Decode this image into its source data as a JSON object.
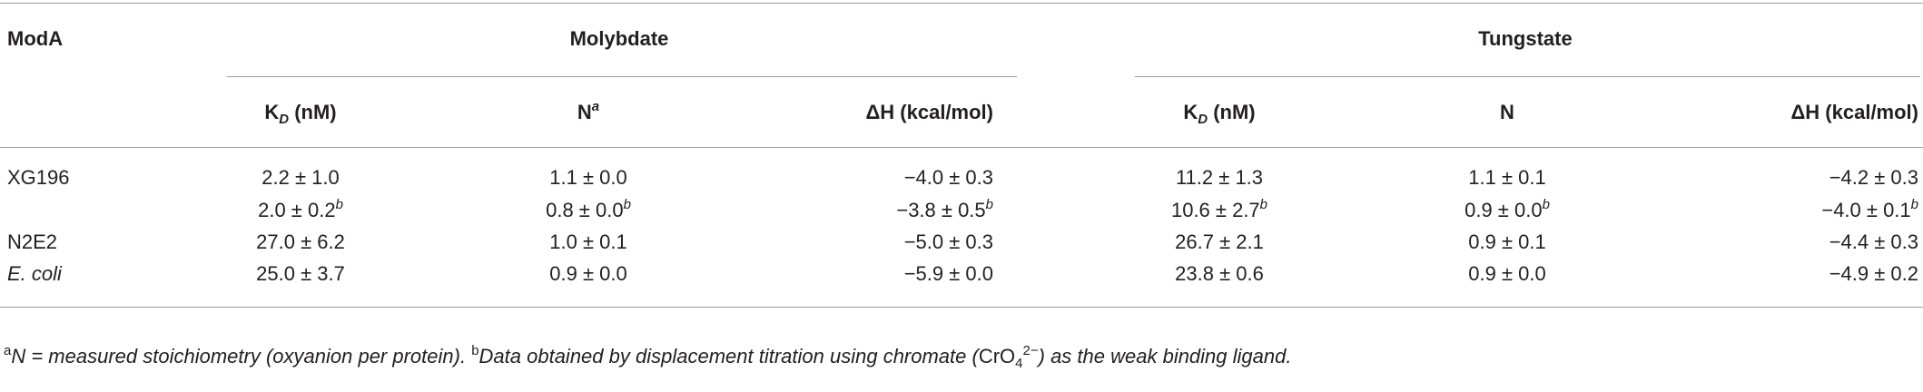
{
  "table": {
    "stub_header": "ModA",
    "groups": [
      "Molybdate",
      "Tungstate"
    ],
    "columns": [
      [
        {
          "text": "K"
        },
        {
          "text": "D",
          "style": "sub italic"
        },
        {
          "text": " (nM)"
        }
      ],
      [
        {
          "text": "N"
        },
        {
          "text": "a",
          "style": "sup italic"
        }
      ],
      [
        {
          "text": "ΔH (kcal/mol)"
        }
      ],
      [
        {
          "text": "K"
        },
        {
          "text": "D",
          "style": "sub italic"
        },
        {
          "text": " (nM)"
        }
      ],
      [
        {
          "text": "N"
        }
      ],
      [
        {
          "text": "ΔH (kcal/mol)"
        }
      ]
    ],
    "rows": [
      [
        [
          {
            "text": "XG196"
          }
        ],
        [
          {
            "text": "2.2 ± 1.0"
          }
        ],
        [
          {
            "text": "1.1 ± 0.0"
          }
        ],
        [
          {
            "text": "−4.0 ± 0.3"
          }
        ],
        [
          {
            "text": "11.2 ± 1.3"
          }
        ],
        [
          {
            "text": "1.1 ± 0.1"
          }
        ],
        [
          {
            "text": "−4.2 ± 0.3"
          }
        ]
      ],
      [
        [],
        [
          {
            "text": "2.0 ± 0.2"
          },
          {
            "text": "b",
            "style": "sup italic"
          }
        ],
        [
          {
            "text": "0.8 ± 0.0"
          },
          {
            "text": "b",
            "style": "sup italic"
          }
        ],
        [
          {
            "text": "−3.8 ± 0.5"
          },
          {
            "text": "b",
            "style": "sup italic"
          }
        ],
        [
          {
            "text": "10.6 ± 2.7"
          },
          {
            "text": "b",
            "style": "sup italic"
          }
        ],
        [
          {
            "text": "0.9 ± 0.0"
          },
          {
            "text": "b",
            "style": "sup italic"
          }
        ],
        [
          {
            "text": "−4.0 ± 0.1"
          },
          {
            "text": "b",
            "style": "sup italic"
          }
        ]
      ],
      [
        [
          {
            "text": "N2E2"
          }
        ],
        [
          {
            "text": "27.0 ± 6.2"
          }
        ],
        [
          {
            "text": "1.0 ± 0.1"
          }
        ],
        [
          {
            "text": "−5.0 ± 0.3"
          }
        ],
        [
          {
            "text": "26.7 ± 2.1"
          }
        ],
        [
          {
            "text": "0.9 ± 0.1"
          }
        ],
        [
          {
            "text": "−4.4 ± 0.3"
          }
        ]
      ],
      [
        [
          {
            "text": "E. coli",
            "style": "italic"
          }
        ],
        [
          {
            "text": "25.0 ± 3.7"
          }
        ],
        [
          {
            "text": "0.9 ± 0.0"
          }
        ],
        [
          {
            "text": "−5.9 ± 0.0"
          }
        ],
        [
          {
            "text": "23.8 ± 0.6"
          }
        ],
        [
          {
            "text": "0.9 ± 0.0"
          }
        ],
        [
          {
            "text": "−4.9 ± 0.2"
          }
        ]
      ]
    ],
    "footnote": [
      {
        "text": "a",
        "style": "sup"
      },
      {
        "text": "N = measured stoichiometry (oxyanion per protein). ",
        "style": "italic"
      },
      {
        "text": "b",
        "style": "sup"
      },
      {
        "text": "Data obtained by displacement titration using chromate (",
        "style": "italic"
      },
      {
        "text": "CrO"
      },
      {
        "text": "4",
        "style": "sub"
      },
      {
        "text": "2−",
        "style": "sup"
      },
      {
        "text": ") as the weak binding ligand.",
        "style": "italic"
      }
    ]
  }
}
